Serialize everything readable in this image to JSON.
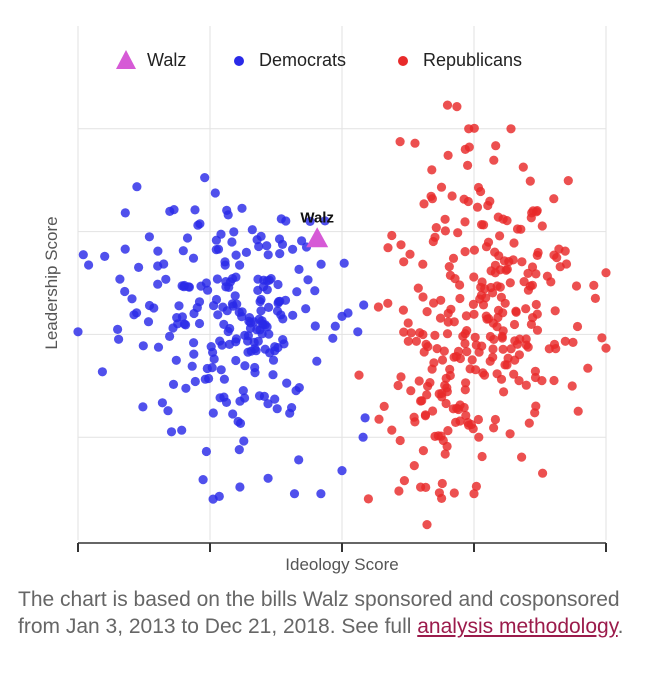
{
  "chart_data": {
    "type": "scatter",
    "xlabel": "Ideology Score",
    "ylabel": "Leadership Score",
    "xlim": [
      0,
      1
    ],
    "ylim": [
      0,
      1
    ],
    "grid": true,
    "legend_position": "top",
    "legend": [
      {
        "name": "Walz",
        "marker": "triangle",
        "color": "#d65ad6"
      },
      {
        "name": "Democrats",
        "marker": "circle",
        "color": "#2a2ae8"
      },
      {
        "name": "Republicans",
        "marker": "circle",
        "color": "#e82a2a"
      }
    ],
    "annotation": {
      "text": "Walz",
      "x": 0.453,
      "y": 0.585
    },
    "walz": {
      "x": 0.453,
      "y": 0.585
    },
    "democrats": {
      "seed": 7,
      "count": 230,
      "clusters": [
        {
          "cx": 0.31,
          "cy": 0.42,
          "sx": 0.075,
          "sy": 0.12,
          "n": 200
        },
        {
          "cx": 0.13,
          "cy": 0.48,
          "sx": 0.05,
          "sy": 0.1,
          "n": 30
        }
      ],
      "extra_points": [
        [
          0.0,
          0.405
        ],
        [
          0.01,
          0.555
        ],
        [
          0.02,
          0.535
        ],
        [
          0.24,
          0.705
        ],
        [
          0.26,
          0.675
        ],
        [
          0.5,
          0.435
        ],
        [
          0.53,
          0.405
        ],
        [
          0.46,
          0.09
        ],
        [
          0.5,
          0.135
        ],
        [
          0.54,
          0.2
        ],
        [
          0.36,
          0.12
        ],
        [
          0.41,
          0.09
        ]
      ]
    },
    "republicans": {
      "seed": 19,
      "count": 290,
      "clusters": [
        {
          "cx": 0.78,
          "cy": 0.45,
          "sx": 0.085,
          "sy": 0.15,
          "n": 250
        },
        {
          "cx": 0.66,
          "cy": 0.25,
          "sx": 0.06,
          "sy": 0.1,
          "n": 40
        }
      ],
      "extra_points": [
        [
          0.57,
          0.235
        ],
        [
          0.55,
          0.08
        ],
        [
          0.61,
          0.775
        ],
        [
          0.67,
          0.72
        ],
        [
          0.82,
          0.8
        ],
        [
          0.74,
          0.8
        ],
        [
          1.0,
          0.52
        ],
        [
          0.98,
          0.47
        ],
        [
          0.88,
          0.13
        ],
        [
          0.75,
          0.09
        ],
        [
          0.69,
          0.11
        ],
        [
          0.58,
          0.26
        ]
      ]
    }
  },
  "caption": {
    "text": "The chart is based on the bills Walz sponsored and cosponsored from Jan 3, 2013 to Dec 21, 2018. See full ",
    "link_text": "analysis methodology",
    "end": "."
  }
}
